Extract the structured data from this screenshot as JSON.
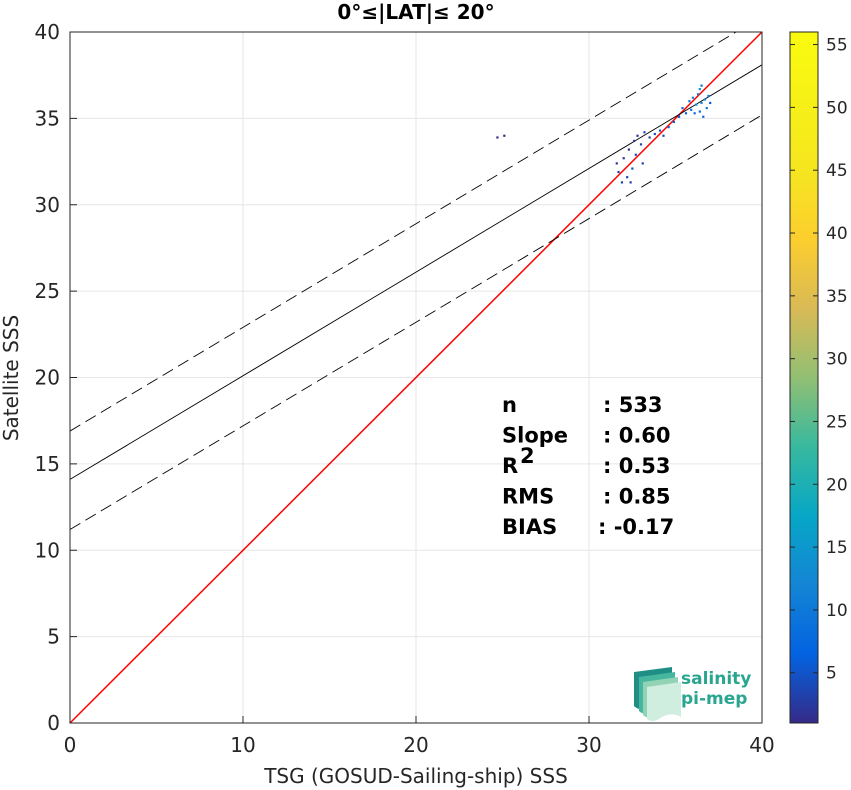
{
  "chart_data": {
    "type": "scatter",
    "title": "0°≤|LAT|≤ 20°",
    "xlabel": "TSG (GOSUD-Sailing-ship) SSS",
    "ylabel": "Satellite SSS",
    "xlim": [
      0,
      40
    ],
    "ylim": [
      0,
      40
    ],
    "xticks": [
      "0",
      "10",
      "20",
      "30",
      "40"
    ],
    "yticks": [
      "0",
      "5",
      "10",
      "15",
      "20",
      "25",
      "30",
      "35",
      "40"
    ],
    "grid": true,
    "points": [
      {
        "x": 24.7,
        "y": 33.9,
        "c": 1
      },
      {
        "x": 25.1,
        "y": 34.0,
        "c": 1
      },
      {
        "x": 31.6,
        "y": 32.4,
        "c": 2
      },
      {
        "x": 31.7,
        "y": 31.9,
        "c": 3
      },
      {
        "x": 31.9,
        "y": 31.3,
        "c": 3
      },
      {
        "x": 32.0,
        "y": 32.7,
        "c": 2
      },
      {
        "x": 32.2,
        "y": 31.6,
        "c": 4
      },
      {
        "x": 32.3,
        "y": 33.2,
        "c": 2
      },
      {
        "x": 32.4,
        "y": 31.3,
        "c": 3
      },
      {
        "x": 32.5,
        "y": 32.1,
        "c": 5
      },
      {
        "x": 32.6,
        "y": 33.7,
        "c": 3
      },
      {
        "x": 32.7,
        "y": 32.9,
        "c": 4
      },
      {
        "x": 32.8,
        "y": 34.0,
        "c": 2
      },
      {
        "x": 33.0,
        "y": 33.5,
        "c": 3
      },
      {
        "x": 33.1,
        "y": 32.4,
        "c": 3
      },
      {
        "x": 33.2,
        "y": 34.2,
        "c": 4
      },
      {
        "x": 33.5,
        "y": 33.9,
        "c": 3
      },
      {
        "x": 33.8,
        "y": 34.1,
        "c": 5
      },
      {
        "x": 34.1,
        "y": 34.3,
        "c": 6
      },
      {
        "x": 34.3,
        "y": 34.0,
        "c": 4
      },
      {
        "x": 34.6,
        "y": 34.5,
        "c": 7
      },
      {
        "x": 34.9,
        "y": 34.8,
        "c": 6
      },
      {
        "x": 35.2,
        "y": 35.1,
        "c": 5
      },
      {
        "x": 35.4,
        "y": 35.6,
        "c": 8
      },
      {
        "x": 35.6,
        "y": 35.3,
        "c": 6
      },
      {
        "x": 35.8,
        "y": 36.0,
        "c": 10
      },
      {
        "x": 35.9,
        "y": 35.5,
        "c": 9
      },
      {
        "x": 36.0,
        "y": 36.2,
        "c": 12
      },
      {
        "x": 36.1,
        "y": 35.3,
        "c": 8
      },
      {
        "x": 36.2,
        "y": 35.8,
        "c": 14
      },
      {
        "x": 36.3,
        "y": 36.4,
        "c": 11
      },
      {
        "x": 36.4,
        "y": 36.7,
        "c": 15
      },
      {
        "x": 36.5,
        "y": 35.9,
        "c": 13
      },
      {
        "x": 36.5,
        "y": 36.9,
        "c": 9
      },
      {
        "x": 36.6,
        "y": 35.1,
        "c": 7
      },
      {
        "x": 36.7,
        "y": 36.1,
        "c": 12
      },
      {
        "x": 36.8,
        "y": 35.6,
        "c": 10
      },
      {
        "x": 36.9,
        "y": 36.3,
        "c": 9
      },
      {
        "x": 37.0,
        "y": 35.9,
        "c": 6
      },
      {
        "x": 36.4,
        "y": 35.4,
        "c": 8
      }
    ],
    "lines": {
      "identity": {
        "slope": 1,
        "intercept": 0,
        "color": "#ff0000"
      },
      "fit": {
        "slope": 0.6,
        "intercept": 14.1,
        "color": "#000000"
      },
      "fit_upper": {
        "slope": 0.6,
        "intercept": 16.9,
        "color": "#000000",
        "dashed": true
      },
      "fit_lower": {
        "slope": 0.6,
        "intercept": 11.2,
        "color": "#000000",
        "dashed": true
      }
    },
    "colorbar": {
      "min": 1,
      "max": 56,
      "ticks": [
        "5",
        "10",
        "15",
        "20",
        "25",
        "30",
        "35",
        "40",
        "45",
        "50",
        "55"
      ]
    },
    "stats": [
      {
        "label": "n",
        "sup": "",
        "value": ": 533"
      },
      {
        "label": "Slope",
        "sup": "",
        "value": ": 0.60"
      },
      {
        "label": "R",
        "sup": "2",
        "value": ": 0.53"
      },
      {
        "label": "RMS",
        "sup": "",
        "value": ": 0.85"
      },
      {
        "label": "BIAS",
        "sup": "",
        "value": ": -0.17"
      }
    ]
  },
  "logo": {
    "line1": "salinity",
    "line2": "pi-mep",
    "colors": [
      "#1f8f86",
      "#46b79e",
      "#93d3b5",
      "#cfeee0"
    ]
  }
}
